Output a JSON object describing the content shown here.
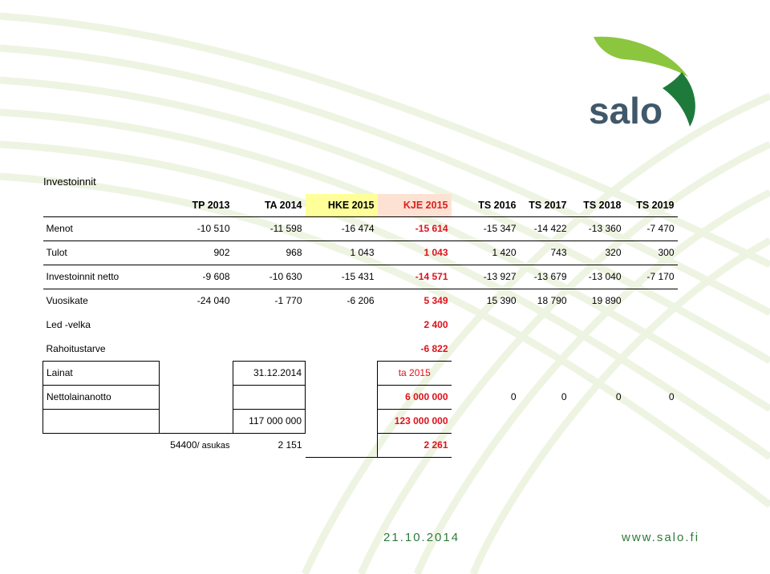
{
  "brand": {
    "name": "salo",
    "green": "#8cc63f",
    "dark_green": "#1d7a3b",
    "text_color": "#40586a"
  },
  "section_title": "Investoinnit",
  "table": {
    "headers": [
      "TP 2013",
      "TA 2014",
      "HKE 2015",
      "KJE 2015",
      "TS 2016",
      "TS 2017",
      "TS 2018",
      "TS 2019"
    ],
    "rows": {
      "menot": {
        "label": "Menot",
        "values": [
          "-10 510",
          "-11 598",
          "-16 474",
          "-15 614",
          "-15 347",
          "-14 422",
          "-13 360",
          "-7 470"
        ]
      },
      "tulot": {
        "label": "Tulot",
        "values": [
          "902",
          "968",
          "1 043",
          "1 043",
          "1 420",
          "743",
          "320",
          "300"
        ]
      },
      "netto": {
        "label": "Investoinnit netto",
        "values": [
          "-9 608",
          "-10 630",
          "-15 431",
          "-14 571",
          "-13 927",
          "-13 679",
          "-13 040",
          "-7 170"
        ]
      },
      "vuosikate": {
        "label": "Vuosikate",
        "values": [
          "-24 040",
          "-1 770",
          "-6 206",
          "5 349",
          "15 390",
          "18 790",
          "19 890"
        ]
      },
      "led": {
        "label": "Led -velka",
        "value": "2 400"
      },
      "rahoitus": {
        "label": "Rahoitustarve",
        "value": "-6 822"
      },
      "lainat": {
        "label": "Lainat",
        "date": "31.12.2014",
        "ta": "ta 2015"
      },
      "nettolaina": {
        "label": "Nettolainanotto",
        "values": [
          "6 000 000",
          "0",
          "0",
          "0",
          "0"
        ]
      },
      "totals": {
        "ta2014": "117 000 000",
        "kje": "123 000 000"
      },
      "per_capita": {
        "population": "54400",
        "unit": "/ asukas",
        "ta2014": "2 151",
        "kje": "2 261"
      }
    }
  },
  "footer": {
    "date": "21.10.2014",
    "url": "www.salo.fi"
  }
}
